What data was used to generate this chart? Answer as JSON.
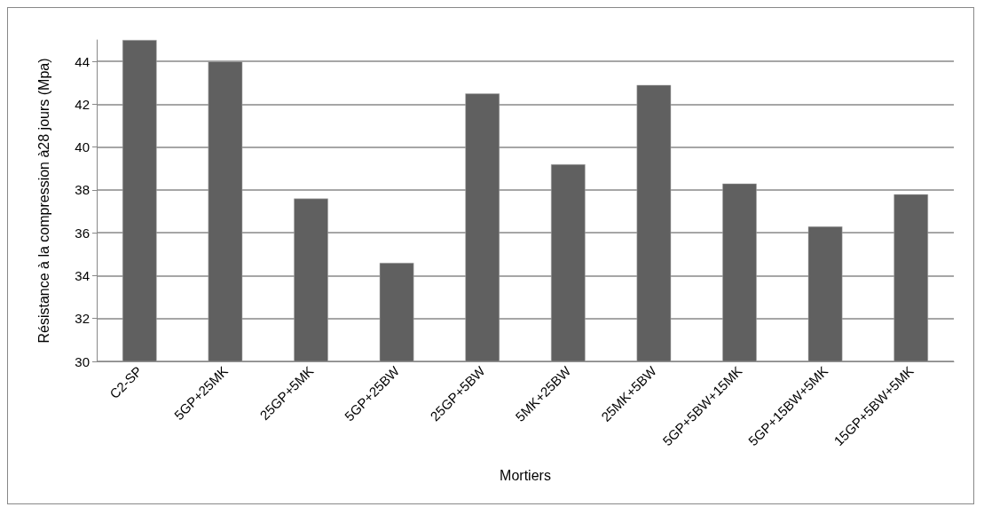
{
  "chart_data": {
    "type": "bar",
    "xlabel": "Mortiers",
    "ylabel": "Résistance à la compression à28 jours (Mpa)",
    "categories": [
      "C2-SP",
      "5GP+25MK",
      "25GP+5MK",
      "5GP+25BW",
      "25GP+5BW",
      "5MK+25BW",
      "25MK+5BW",
      "5GP+5BW+15MK",
      "5GP+15BW+5MK",
      "15GP+5BW+5MK"
    ],
    "values": [
      45,
      44,
      37.6,
      34.6,
      42.5,
      39.2,
      42.9,
      38.3,
      36.3,
      37.8
    ],
    "color": "#606060",
    "ylim": [
      30,
      45
    ],
    "yticks": [
      30,
      32,
      34,
      36,
      38,
      40,
      42,
      44
    ],
    "grid": "y"
  }
}
